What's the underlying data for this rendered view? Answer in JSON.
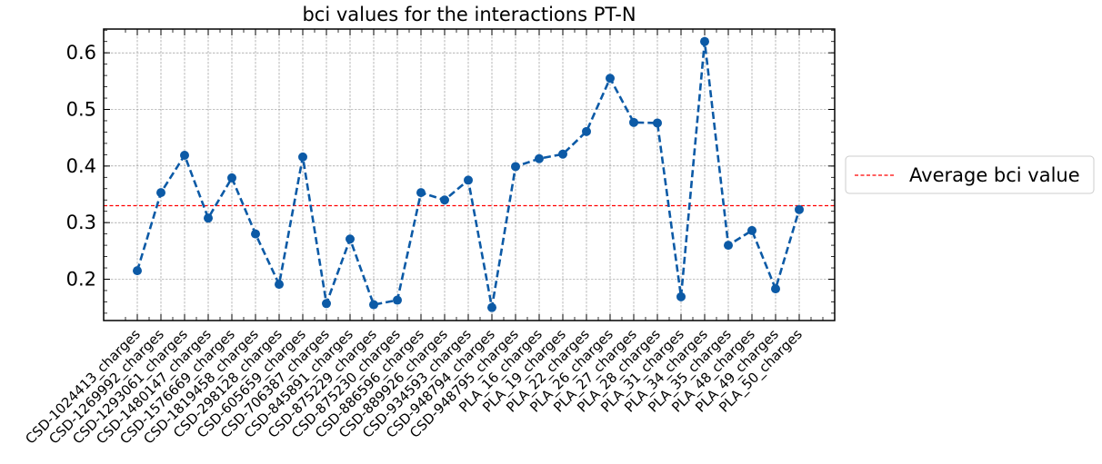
{
  "chart_data": {
    "type": "line",
    "title": "bci values for the interactions PT-N",
    "xlabel": "",
    "ylabel": "",
    "categories": [
      "CSD-1024413_charges",
      "CSD-1269992_charges",
      "CSD-1293061_charges",
      "CSD-1480147_charges",
      "CSD-1576669_charges",
      "CSD-1819458_charges",
      "CSD-298128_charges",
      "CSD-605659_charges",
      "CSD-706387_charges",
      "CSD-845891_charges",
      "CSD-875229_charges",
      "CSD-875230_charges",
      "CSD-886596_charges",
      "CSD-889926_charges",
      "CSD-934593_charges",
      "CSD-948794_charges",
      "CSD-948795_charges",
      "PLA_16_charges",
      "PLA_19_charges",
      "PLA_22_charges",
      "PLA_26_charges",
      "PLA_27_charges",
      "PLA_28_charges",
      "PLA_31_charges",
      "PLA_34_charges",
      "PLA_35_charges",
      "PLA_48_charges",
      "PLA_49_charges",
      "PLA_50_charges"
    ],
    "series": [
      {
        "name": "",
        "color": "#0c5aa6",
        "values": [
          0.215,
          0.353,
          0.419,
          0.308,
          0.379,
          0.28,
          0.191,
          0.416,
          0.157,
          0.271,
          0.155,
          0.163,
          0.353,
          0.34,
          0.375,
          0.15,
          0.399,
          0.413,
          0.421,
          0.461,
          0.555,
          0.477,
          0.476,
          0.169,
          0.62,
          0.26,
          0.286,
          0.183,
          0.323
        ]
      }
    ],
    "reference_line": {
      "name": "Average bci value",
      "value": 0.33,
      "color": "#ff0000",
      "style": "dashed"
    },
    "yticks": [
      "0.2",
      "0.3",
      "0.4",
      "0.5",
      "0.6"
    ],
    "ylim": [
      0.127,
      0.642
    ],
    "grid": true,
    "legend_position": "outside-right"
  }
}
